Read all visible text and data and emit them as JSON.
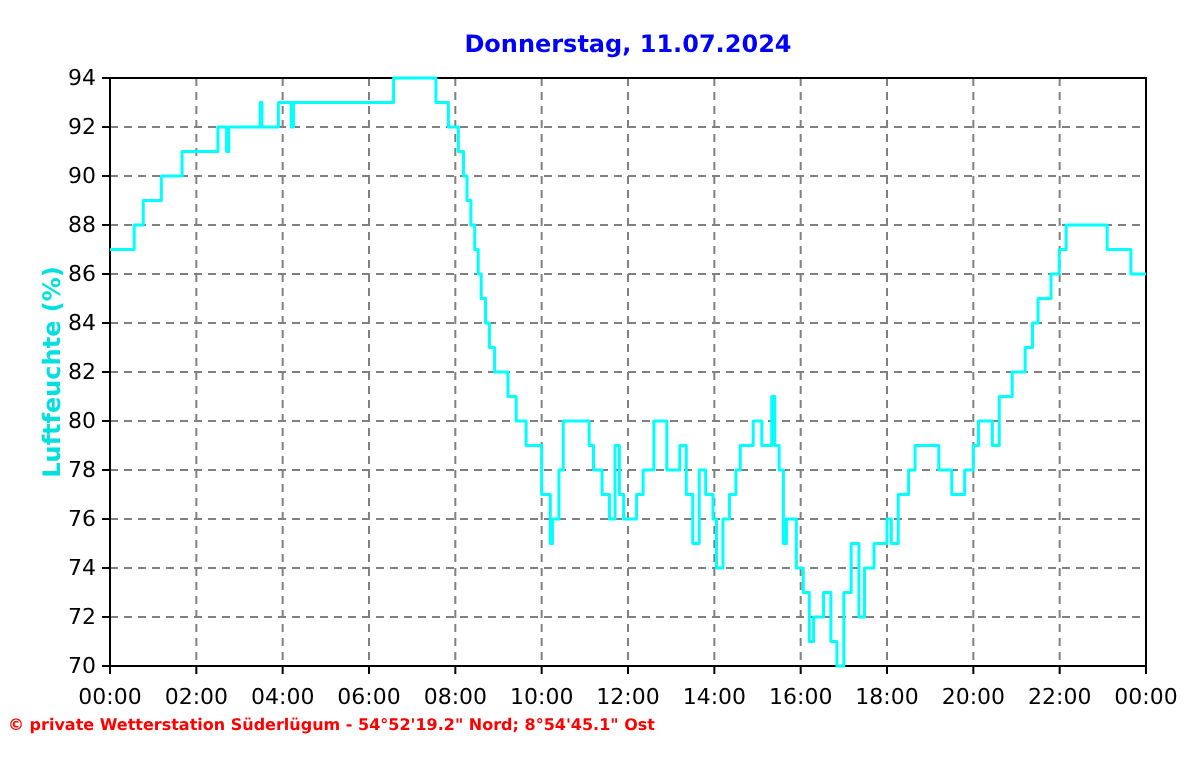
{
  "chart_data": {
    "type": "step",
    "title": "Donnerstag, 11.07.2024",
    "ylabel": "Luftfeuchte (%)",
    "annotations": [
      "© private Wetterstation Süderlügum - 54°52'19.2\" Nord; 8°54'45.1\" Ost"
    ],
    "x": [
      0,
      0.56,
      0.77,
      1.19,
      1.67,
      2.5,
      2.7,
      2.75,
      3.48,
      3.52,
      3.9,
      4.2,
      4.25,
      6.57,
      7.55,
      7.84,
      8.07,
      8.19,
      8.27,
      8.36,
      8.45,
      8.53,
      8.6,
      8.7,
      8.79,
      8.91,
      9.22,
      9.41,
      9.64,
      10.0,
      10.2,
      10.25,
      10.4,
      10.5,
      11.1,
      11.2,
      11.4,
      11.57,
      11.7,
      11.8,
      11.9,
      12.2,
      12.35,
      12.6,
      12.9,
      13.2,
      13.35,
      13.5,
      13.65,
      13.8,
      13.97,
      14.05,
      14.2,
      14.35,
      14.5,
      14.6,
      14.9,
      15.1,
      15.33,
      15.4,
      15.5,
      15.6,
      15.67,
      15.9,
      16.06,
      16.2,
      16.3,
      16.53,
      16.7,
      16.84,
      17.0,
      17.17,
      17.35,
      17.48,
      17.7,
      18.0,
      18.1,
      18.26,
      18.5,
      18.65,
      18.95,
      19.2,
      19.5,
      19.8,
      20.0,
      20.12,
      20.44,
      20.6,
      20.9,
      21.2,
      21.37,
      21.5,
      21.8,
      21.99,
      22.15,
      23.1,
      23.65,
      24
    ],
    "series": [
      {
        "color": "#00ffff",
        "values": [
          87,
          88,
          89,
          90,
          91,
          92,
          91,
          92,
          93,
          92,
          93,
          92,
          93,
          94,
          93,
          92,
          91,
          90,
          89,
          88,
          87,
          86,
          85,
          84,
          83,
          82,
          81,
          80,
          79,
          77,
          75,
          76,
          78,
          80,
          79,
          78,
          77,
          76,
          79,
          77,
          76,
          77,
          78,
          80,
          78,
          79,
          77,
          75,
          78,
          77,
          76,
          74,
          76,
          77,
          78,
          79,
          80,
          79,
          81,
          79,
          78,
          75,
          76,
          74,
          73,
          71,
          72,
          73,
          71,
          70,
          73,
          75,
          72,
          74,
          75,
          76,
          75,
          77,
          78,
          79,
          79,
          78,
          77,
          78,
          79,
          80,
          79,
          81,
          82,
          83,
          84,
          85,
          86,
          87,
          88,
          87,
          86,
          86
        ]
      }
    ],
    "xlim": [
      0,
      24
    ],
    "xticks": [
      {
        "value": 0,
        "label": "00:00"
      },
      {
        "value": 2,
        "label": "02:00"
      },
      {
        "value": 4,
        "label": "04:00"
      },
      {
        "value": 6,
        "label": "06:00"
      },
      {
        "value": 8,
        "label": "08:00"
      },
      {
        "value": 10,
        "label": "10:00"
      },
      {
        "value": 12,
        "label": "12:00"
      },
      {
        "value": 14,
        "label": "14:00"
      },
      {
        "value": 16,
        "label": "16:00"
      },
      {
        "value": 18,
        "label": "18:00"
      },
      {
        "value": 20,
        "label": "20:00"
      },
      {
        "value": 22,
        "label": "22:00"
      },
      {
        "value": 24,
        "label": "00:00"
      }
    ],
    "ylim": [
      70,
      94
    ],
    "yticks": [
      70,
      72,
      74,
      76,
      78,
      80,
      82,
      84,
      86,
      88,
      90,
      92,
      94
    ],
    "grid": true
  }
}
